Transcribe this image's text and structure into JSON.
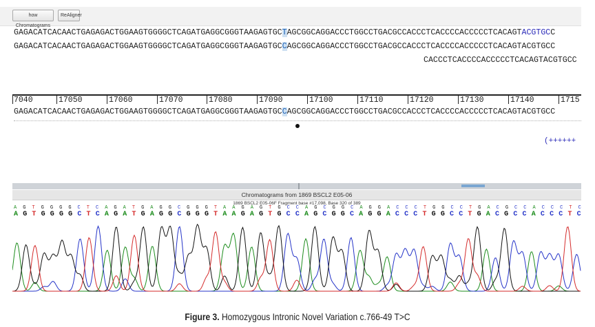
{
  "toolbar": {
    "show_chromatograms": "how Chromatograms",
    "realigner": "ReAligner"
  },
  "alignment": {
    "ref_1_before": "GAGACATCACAACTGAGAGACTGGAAGTGGGGCTCAGATGAGGCGGGTAAGAGTGC",
    "ref_1_highlight": "T",
    "ref_1_mid": "AGCGGCAGGACCCTGGCCTGACGCCACCCTCACCCCACCCCCTCACAGT",
    "ref_1_blue": "ACGTGC",
    "ref_1_tail": "C",
    "ref_2_before": "GAGACATCACAACTGAGAGACTGGAAGTGGGGCTCAGATGAGGCGGGTAAGAGTGC",
    "ref_2_highlight": "C",
    "ref_2_after": "AGCGGCAGGACCCTGGCCTGACGCCACCCTCACCCCACCCCCTCACAGTACGTGCC",
    "partial_3": "CACCCTCACCCCACCCCCTCACAGTACGTGCC"
  },
  "ruler": {
    "ticks": [
      "7040",
      "17050",
      "17060",
      "17070",
      "17080",
      "17090",
      "17100",
      "17110",
      "17120",
      "17130",
      "17140",
      "1715"
    ]
  },
  "sample": {
    "before": "GAGACATCACAACTGAGAGACTGGAAGTGGGGCTCAGATGAGGCGGGTAAGAGTGC",
    "highlight": "C",
    "after": "AGCGGCAGGACCCTGGCCTGACGCCACCCTCACCCCACCCCCTCACAGTACGTGCC"
  },
  "marker_dots": "(++++++",
  "chromatogram_panel": {
    "title": "Chromatograms from 1869 BSCL2 E05-06",
    "subtitle": "1869 BSCL2 E05-06F Fragment base #17,098, Base 320 of 389",
    "bases_top": [
      "A",
      "G",
      "T",
      "G",
      "G",
      "G",
      "G",
      "C",
      "T",
      "C",
      "A",
      "G",
      "A",
      "T",
      "G",
      "A",
      "G",
      "G",
      "C",
      "G",
      "G",
      "G",
      "T",
      "A",
      "A",
      "G",
      "A",
      "G",
      "T",
      "G",
      "C",
      "C",
      "A",
      "G",
      "C",
      "G",
      "G",
      "C",
      "A",
      "G",
      "G",
      "A",
      "C",
      "C",
      "C",
      "T",
      "G",
      "G",
      "C",
      "C",
      "T",
      "G",
      "A",
      "C",
      "G",
      "C",
      "C",
      "A",
      "C",
      "C",
      "C",
      "T",
      "C"
    ],
    "bases_main": [
      "A",
      "G",
      "T",
      "G",
      "G",
      "G",
      "G",
      "C",
      "T",
      "C",
      "A",
      "G",
      "A",
      "T",
      "G",
      "A",
      "G",
      "G",
      "C",
      "G",
      "G",
      "G",
      "T",
      "A",
      "A",
      "G",
      "A",
      "G",
      "T",
      "G",
      "C",
      "C",
      "A",
      "G",
      "C",
      "G",
      "G",
      "C",
      "A",
      "G",
      "G",
      "A",
      "C",
      "C",
      "C",
      "T",
      "G",
      "G",
      "C",
      "C",
      "T",
      "G",
      "A",
      "C",
      "G",
      "C",
      "C",
      "A",
      "C",
      "C",
      "C",
      "T",
      "C"
    ],
    "trace_colors": {
      "A": "#1c8c1c",
      "C": "#2433c8",
      "G": "#111111",
      "T": "#d42a2a"
    }
  },
  "caption": {
    "label": "Figure 3.",
    "text": "Homozygous Intronic Novel Variation c.766-49 T>C"
  }
}
